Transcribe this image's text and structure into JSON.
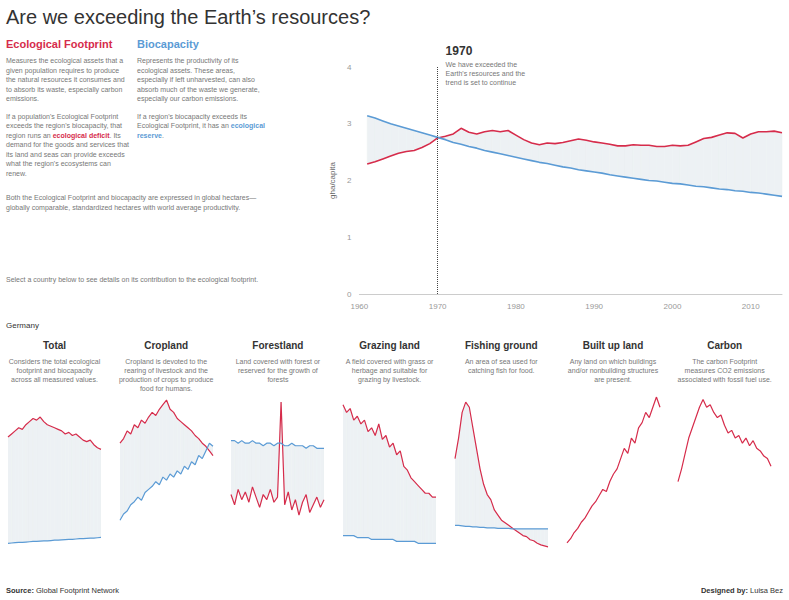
{
  "title": "Are we exceeding the Earth’s resources?",
  "intro": {
    "columns": [
      [
        {
          "text": "Measures the ecological assets that a given population requires to produce the natural resources it consumes and to absorb its waste, especially carbon emissions."
        },
        {
          "text": "If a population's Ecological Footprint exceeds the region's biocapacity, that region runs an ecological deficit. Its demand for the goods and services that its land and seas can provide exceeds what the region's ecosystems can renew.",
          "highlight": "ecological deficit"
        }
      ],
      [
        {
          "text": "Represents the productivity of its ecological assets. These areas, especially if left unharvested, can also absorb much of the waste we generate, especially our carbon emissions."
        },
        {
          "text": "If a region's biocapacity exceeds its Ecological Footprint, it has an ecological reserve.",
          "highlight": "ecological reserve"
        }
      ]
    ],
    "notes": [
      {
        "text": "Both the Ecological Footprint and biocapacity are expressed in global hectares—globally comparable, standardized hectares with world average productivity."
      },
      {
        "text": "Select a country below to see details on its contribution to the ecological footprint."
      }
    ]
  },
  "country": "Germany",
  "footer": {
    "source": {
      "label": "Source:",
      "text": "Global Footprint Network"
    },
    "credit": {
      "label": "Designed by:",
      "text": "Luisa Bez"
    }
  },
  "chart_data": [
    {
      "type": "line",
      "ylabel": "gha/capita",
      "x": [
        1961,
        1962,
        1963,
        1964,
        1965,
        1966,
        1967,
        1968,
        1969,
        1970,
        1971,
        1972,
        1973,
        1974,
        1975,
        1976,
        1977,
        1978,
        1979,
        1980,
        1981,
        1982,
        1983,
        1984,
        1985,
        1986,
        1987,
        1988,
        1989,
        1990,
        1991,
        1992,
        1993,
        1994,
        1995,
        1996,
        1997,
        1998,
        1999,
        2000,
        2001,
        2002,
        2003,
        2004,
        2005,
        2006,
        2007,
        2008,
        2009,
        2010,
        2011,
        2012,
        2013,
        2014
      ],
      "series": [
        {
          "name": "Ecological Footprint",
          "color": "#d62c4b",
          "values": [
            2.29,
            2.33,
            2.38,
            2.43,
            2.48,
            2.51,
            2.53,
            2.58,
            2.65,
            2.75,
            2.78,
            2.82,
            2.92,
            2.85,
            2.82,
            2.86,
            2.88,
            2.86,
            2.88,
            2.8,
            2.72,
            2.66,
            2.63,
            2.66,
            2.65,
            2.67,
            2.7,
            2.73,
            2.71,
            2.68,
            2.66,
            2.64,
            2.61,
            2.61,
            2.63,
            2.62,
            2.62,
            2.6,
            2.6,
            2.62,
            2.61,
            2.62,
            2.68,
            2.74,
            2.76,
            2.8,
            2.84,
            2.83,
            2.75,
            2.82,
            2.86,
            2.86,
            2.87,
            2.84
          ]
        },
        {
          "name": "Biocapacity",
          "color": "#5b9bd5",
          "values": [
            3.14,
            3.1,
            3.05,
            3.0,
            2.96,
            2.92,
            2.88,
            2.84,
            2.8,
            2.76,
            2.72,
            2.67,
            2.64,
            2.6,
            2.57,
            2.53,
            2.5,
            2.47,
            2.44,
            2.41,
            2.38,
            2.35,
            2.32,
            2.3,
            2.27,
            2.24,
            2.22,
            2.19,
            2.17,
            2.15,
            2.13,
            2.1,
            2.08,
            2.06,
            2.04,
            2.02,
            2.0,
            1.99,
            1.97,
            1.95,
            1.94,
            1.92,
            1.9,
            1.89,
            1.87,
            1.85,
            1.84,
            1.82,
            1.81,
            1.79,
            1.78,
            1.76,
            1.74,
            1.72
          ]
        }
      ],
      "xlim": [
        1960,
        2014
      ],
      "xticks": [
        1960,
        1970,
        1980,
        1990,
        2000,
        2010
      ],
      "ylim": [
        0,
        4
      ],
      "yticks": [
        0,
        1,
        2,
        3,
        4
      ],
      "grid": false,
      "annotations": [
        {
          "x": 1970,
          "text": "We have exceeded the Earth's resources and the trend is set to continue"
        }
      ]
    },
    {
      "type": "line",
      "title": "Total",
      "subtitle": "Considers the total ecological footprint and biocapacity across all measured values.",
      "x": [
        1962,
        1964,
        1966,
        1968,
        1970,
        1972,
        1974,
        1976,
        1978,
        1980,
        1982,
        1984,
        1986,
        1988,
        1990,
        1992,
        1994,
        1996,
        1998,
        2000,
        2002,
        2004,
        2006,
        2008,
        2010,
        2012,
        2014
      ],
      "series": [
        {
          "name": "Ecological Footprint",
          "color": "#d62c4b",
          "values": [
            5.2,
            5.3,
            5.4,
            5.5,
            5.45,
            5.6,
            5.7,
            5.8,
            5.75,
            5.85,
            5.7,
            5.6,
            5.55,
            5.5,
            5.45,
            5.4,
            5.3,
            5.35,
            5.25,
            5.3,
            5.2,
            5.1,
            5.05,
            5.1,
            4.95,
            4.85,
            4.8
          ]
        },
        {
          "name": "Biocapacity",
          "color": "#5b9bd5",
          "values": [
            1.75,
            1.76,
            1.77,
            1.78,
            1.78,
            1.79,
            1.8,
            1.81,
            1.81,
            1.82,
            1.83,
            1.83,
            1.84,
            1.85,
            1.85,
            1.86,
            1.87,
            1.88,
            1.88,
            1.89,
            1.9,
            1.9,
            1.91,
            1.92,
            1.92,
            1.93,
            1.94
          ]
        }
      ],
      "xlim": [
        1962,
        2014
      ],
      "ylim": [
        1.5,
        6.5
      ],
      "grid": false,
      "tick_labels": false
    },
    {
      "type": "line",
      "title": "Cropland",
      "subtitle": "Cropland is devoted to the rearing of livestock and the production of crops to produce food for humans.",
      "x": [
        1962,
        1964,
        1966,
        1968,
        1970,
        1972,
        1974,
        1976,
        1978,
        1980,
        1982,
        1984,
        1986,
        1988,
        1990,
        1992,
        1994,
        1996,
        1998,
        2000,
        2002,
        2004,
        2006,
        2008,
        2010,
        2012,
        2014
      ],
      "series": [
        {
          "name": "Ecological Footprint",
          "color": "#d62c4b",
          "values": [
            1.3,
            1.33,
            1.38,
            1.36,
            1.42,
            1.4,
            1.45,
            1.43,
            1.47,
            1.5,
            1.48,
            1.52,
            1.55,
            1.58,
            1.52,
            1.5,
            1.46,
            1.44,
            1.42,
            1.4,
            1.38,
            1.35,
            1.33,
            1.3,
            1.28,
            1.25,
            1.22
          ]
        },
        {
          "name": "Biocapacity",
          "color": "#5b9bd5",
          "values": [
            0.8,
            0.84,
            0.86,
            0.9,
            0.92,
            0.95,
            0.93,
            0.98,
            1.0,
            1.02,
            1.05,
            1.03,
            1.08,
            1.06,
            1.1,
            1.08,
            1.12,
            1.1,
            1.15,
            1.13,
            1.18,
            1.16,
            1.22,
            1.2,
            1.25,
            1.3,
            1.28
          ]
        }
      ],
      "xlim": [
        1962,
        2014
      ],
      "ylim": [
        0.6,
        1.6
      ],
      "grid": false,
      "tick_labels": false
    },
    {
      "type": "line",
      "title": "Forestland",
      "subtitle": "Land covered with forest or reserved for the growth of forests",
      "x": [
        1962,
        1964,
        1966,
        1968,
        1970,
        1972,
        1974,
        1976,
        1978,
        1980,
        1982,
        1984,
        1986,
        1988,
        1990,
        1992,
        1994,
        1996,
        1998,
        2000,
        2002,
        2004,
        2006,
        2008,
        2010,
        2012,
        2014
      ],
      "series": [
        {
          "name": "Ecological Footprint",
          "color": "#d62c4b",
          "values": [
            0.22,
            0.18,
            0.24,
            0.2,
            0.23,
            0.19,
            0.25,
            0.21,
            0.17,
            0.22,
            0.2,
            0.24,
            0.19,
            0.21,
            0.58,
            0.18,
            0.23,
            0.16,
            0.2,
            0.14,
            0.19,
            0.22,
            0.15,
            0.18,
            0.21,
            0.17,
            0.2
          ]
        },
        {
          "name": "Biocapacity",
          "color": "#5b9bd5",
          "values": [
            0.43,
            0.43,
            0.42,
            0.43,
            0.42,
            0.42,
            0.43,
            0.42,
            0.42,
            0.41,
            0.42,
            0.42,
            0.41,
            0.42,
            0.42,
            0.41,
            0.41,
            0.42,
            0.41,
            0.41,
            0.41,
            0.4,
            0.41,
            0.41,
            0.4,
            0.4,
            0.4
          ]
        }
      ],
      "xlim": [
        1962,
        2014
      ],
      "ylim": [
        0,
        0.6
      ],
      "grid": false,
      "tick_labels": false
    },
    {
      "type": "line",
      "title": "Grazing land",
      "subtitle": "A field covered with grass or herbage and suitable for grazing by livestock.",
      "x": [
        1962,
        1964,
        1966,
        1968,
        1970,
        1972,
        1974,
        1976,
        1978,
        1980,
        1982,
        1984,
        1986,
        1988,
        1990,
        1992,
        1994,
        1996,
        1998,
        2000,
        2002,
        2004,
        2006,
        2008,
        2010,
        2012,
        2014
      ],
      "series": [
        {
          "name": "Ecological Footprint",
          "color": "#d62c4b",
          "values": [
            0.38,
            0.36,
            0.37,
            0.34,
            0.35,
            0.33,
            0.34,
            0.31,
            0.32,
            0.3,
            0.33,
            0.29,
            0.3,
            0.27,
            0.28,
            0.25,
            0.26,
            0.22,
            0.21,
            0.19,
            0.18,
            0.17,
            0.16,
            0.15,
            0.15,
            0.14,
            0.14
          ]
        },
        {
          "name": "Biocapacity",
          "color": "#5b9bd5",
          "values": [
            0.04,
            0.04,
            0.04,
            0.04,
            0.035,
            0.035,
            0.035,
            0.035,
            0.03,
            0.03,
            0.03,
            0.03,
            0.03,
            0.03,
            0.03,
            0.025,
            0.025,
            0.025,
            0.025,
            0.025,
            0.025,
            0.02,
            0.02,
            0.02,
            0.02,
            0.02,
            0.02
          ]
        }
      ],
      "xlim": [
        1962,
        2014
      ],
      "ylim": [
        0,
        0.4
      ],
      "grid": false,
      "tick_labels": false
    },
    {
      "type": "line",
      "title": "Fishing ground",
      "subtitle": "An area of sea used for catching fish for food.",
      "x": [
        1962,
        1964,
        1966,
        1968,
        1970,
        1972,
        1974,
        1976,
        1978,
        1980,
        1982,
        1984,
        1986,
        1988,
        1990,
        1992,
        1994,
        1996,
        1998,
        2000,
        2002,
        2004,
        2006,
        2008,
        2010,
        2012,
        2014
      ],
      "series": [
        {
          "name": "Ecological Footprint",
          "color": "#d62c4b",
          "values": [
            0.18,
            0.22,
            0.27,
            0.29,
            0.28,
            0.24,
            0.2,
            0.16,
            0.13,
            0.11,
            0.1,
            0.08,
            0.07,
            0.06,
            0.055,
            0.05,
            0.045,
            0.04,
            0.035,
            0.03,
            0.028,
            0.022,
            0.02,
            0.015,
            0.012,
            0.01,
            0.008
          ]
        },
        {
          "name": "Biocapacity",
          "color": "#5b9bd5",
          "values": [
            0.05,
            0.05,
            0.049,
            0.048,
            0.048,
            0.047,
            0.047,
            0.046,
            0.046,
            0.045,
            0.045,
            0.045,
            0.044,
            0.044,
            0.044,
            0.044,
            0.043,
            0.043,
            0.043,
            0.043,
            0.043,
            0.043,
            0.043,
            0.043,
            0.043,
            0.043,
            0.043
          ]
        }
      ],
      "xlim": [
        1962,
        2014
      ],
      "ylim": [
        0,
        0.3
      ],
      "grid": false,
      "tick_labels": false
    },
    {
      "type": "line",
      "title": "Built up land",
      "subtitle": "Any land on which buildings and/or nonbuilding structures are present.",
      "x": [
        1962,
        1964,
        1966,
        1968,
        1970,
        1972,
        1974,
        1976,
        1978,
        1980,
        1982,
        1984,
        1986,
        1988,
        1990,
        1992,
        1994,
        1996,
        1998,
        2000,
        2002,
        2004,
        2006,
        2008,
        2010,
        2012,
        2014
      ],
      "series": [
        {
          "name": "Ecological Footprint",
          "color": "#d62c4b",
          "values": [
            0.058,
            0.062,
            0.068,
            0.072,
            0.078,
            0.082,
            0.088,
            0.094,
            0.098,
            0.104,
            0.11,
            0.108,
            0.118,
            0.125,
            0.13,
            0.14,
            0.15,
            0.145,
            0.16,
            0.155,
            0.17,
            0.175,
            0.185,
            0.18,
            0.19,
            0.2,
            0.19
          ]
        }
      ],
      "xlim": [
        1962,
        2014
      ],
      "ylim": [
        0.05,
        0.2
      ],
      "grid": false,
      "tick_labels": false
    },
    {
      "type": "line",
      "title": "Carbon",
      "subtitle": "The carbon Footprint measures CO2 emissions associated with fossil fuel use.",
      "x": [
        1962,
        1964,
        1966,
        1968,
        1970,
        1972,
        1974,
        1976,
        1978,
        1980,
        1982,
        1984,
        1986,
        1988,
        1990,
        1992,
        1994,
        1996,
        1998,
        2000,
        2002,
        2004,
        2006,
        2008,
        2010,
        2012,
        2014
      ],
      "series": [
        {
          "name": "Ecological Footprint",
          "color": "#d62c4b",
          "values": [
            2.85,
            3.1,
            3.4,
            3.7,
            3.9,
            4.1,
            4.3,
            4.45,
            4.3,
            4.35,
            4.2,
            4.1,
            4.15,
            3.95,
            3.8,
            3.85,
            3.7,
            3.75,
            3.6,
            3.7,
            3.55,
            3.65,
            3.5,
            3.45,
            3.35,
            3.3,
            3.15
          ]
        }
      ],
      "xlim": [
        1962,
        2014
      ],
      "ylim": [
        1.5,
        4.5
      ],
      "grid": false,
      "tick_labels": false
    }
  ]
}
